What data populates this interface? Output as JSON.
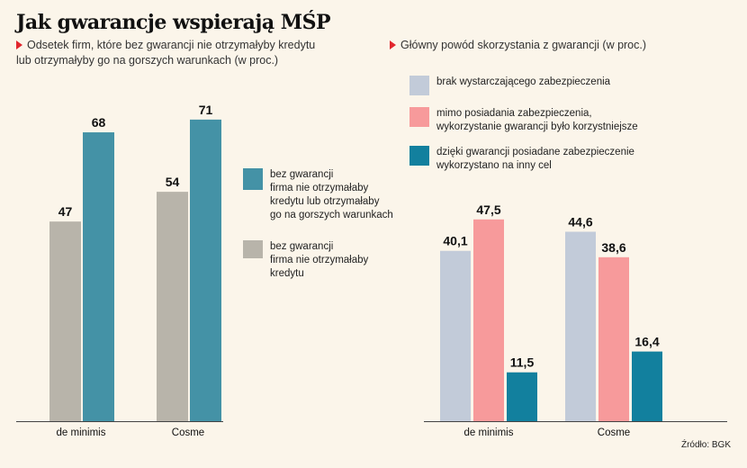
{
  "title": "Jak gwarancje wspierają MŚP",
  "colors": {
    "gray": "#b8b4aa",
    "teal": "#4492a6",
    "lightblue": "#c2cbd9",
    "pink": "#f79a9b",
    "darkteal": "#12809e",
    "marker": "#e1262d"
  },
  "source": "Źródło: BGK",
  "chart_data": [
    {
      "type": "bar",
      "subtitle": "Odsetek firm, które bez gwarancji nie otrzymałyby kredytu lub otrzymałyby go na gorszych warunkach (w proc.)",
      "categories": [
        "de minimis",
        "Cosme"
      ],
      "ylim": [
        0,
        80
      ],
      "series": [
        {
          "name": "bez gwarancji firma nie otrzymałaby kredytu",
          "color": "#b8b4aa",
          "values": [
            47,
            54
          ],
          "labels": [
            "47",
            "54"
          ]
        },
        {
          "name": "bez gwarancji firma nie otrzymałaby kredytu lub otrzymałaby go na gorszych warunkach",
          "color": "#4492a6",
          "values": [
            68,
            71
          ],
          "labels": [
            "68",
            "71"
          ]
        }
      ],
      "legend": [
        {
          "lines": [
            "bez gwarancji",
            "firma nie otrzymałaby",
            "kredytu lub otrzymałaby",
            "go na gorszych warunkach"
          ],
          "color": "#4492a6"
        },
        {
          "lines": [
            "bez gwarancji",
            "firma nie otrzymałaby",
            "kredytu"
          ],
          "color": "#b8b4aa"
        }
      ]
    },
    {
      "type": "bar",
      "subtitle": "Główny powód skorzystania z gwarancji (w proc.)",
      "categories": [
        "de minimis",
        "Cosme"
      ],
      "ylim": [
        0,
        80
      ],
      "series": [
        {
          "name": "brak wystarczającego zabezpieczenia",
          "color": "#c2cbd9",
          "values": [
            40.1,
            44.6
          ],
          "labels": [
            "40,1",
            "44,6"
          ]
        },
        {
          "name": "mimo posiadania zabezpieczenia, wykorzystanie gwarancji było korzystniejsze",
          "color": "#f79a9b",
          "values": [
            47.5,
            38.6
          ],
          "labels": [
            "47,5",
            "38,6"
          ]
        },
        {
          "name": "dzięki gwarancji posiadane zabezpieczenie wykorzystano na inny cel",
          "color": "#12809e",
          "values": [
            11.5,
            16.4
          ],
          "labels": [
            "11,5",
            "16,4"
          ]
        }
      ],
      "legend": [
        {
          "lines": [
            "brak wystarczającego zabezpieczenia"
          ],
          "color": "#c2cbd9"
        },
        {
          "lines": [
            "mimo posiadania zabezpieczenia,",
            "wykorzystanie gwarancji było korzystniejsze"
          ],
          "color": "#f79a9b"
        },
        {
          "lines": [
            "dzięki gwarancji posiadane zabezpieczenie",
            "wykorzystano na inny cel"
          ],
          "color": "#12809e"
        }
      ]
    }
  ]
}
